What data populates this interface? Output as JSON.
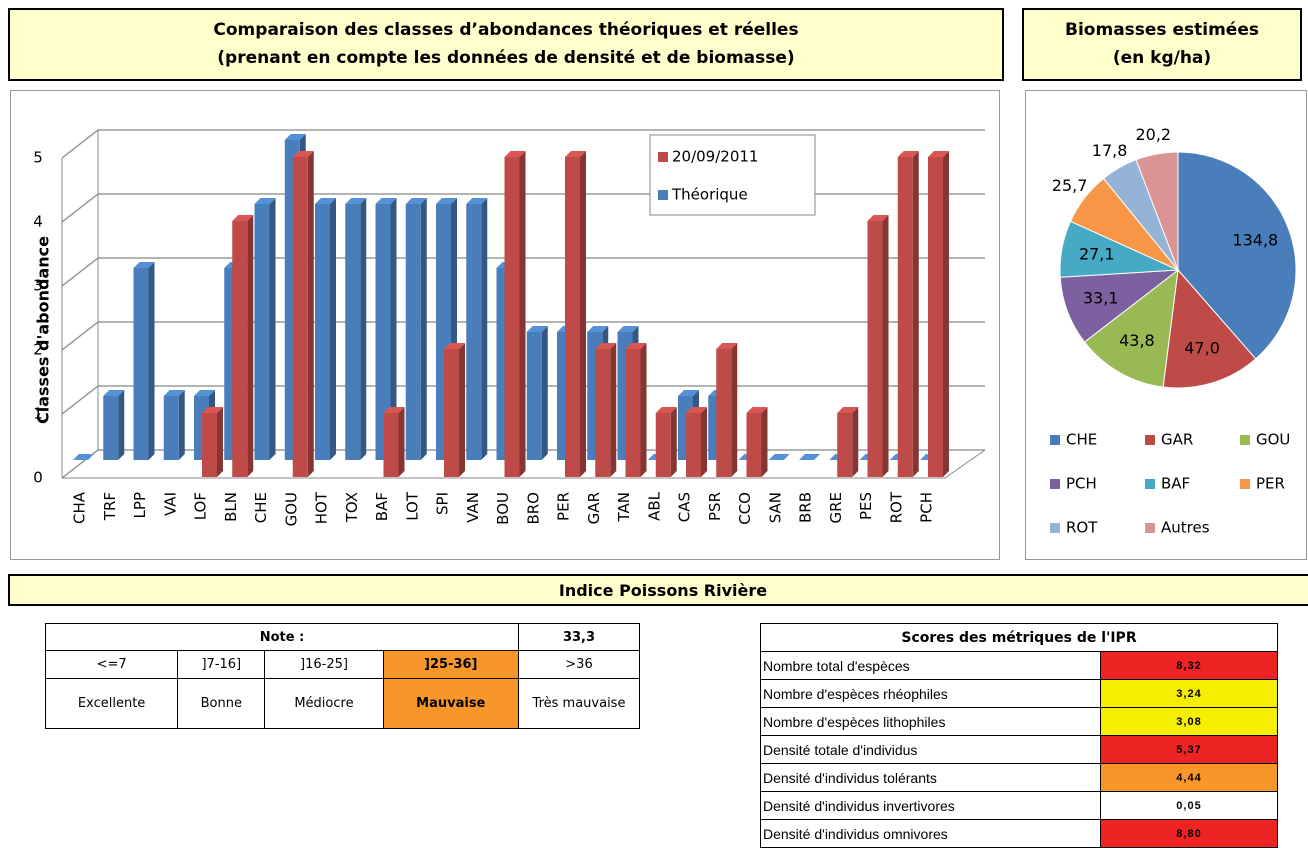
{
  "header": {
    "chart_title": "Comparaison des classes d’abondances théoriques et réelles",
    "chart_subtitle": "(prenant en compte les données de densité et de biomasse)",
    "pie_title": "Biomasses estimées",
    "pie_subtitle": "(en kg/ha)"
  },
  "chart_data": [
    {
      "type": "bar",
      "y_label": "Classes d'abondance",
      "categories": [
        "CHA",
        "TRF",
        "LPP",
        "VAI",
        "LOF",
        "BLN",
        "CHE",
        "GOU",
        "HOT",
        "TOX",
        "BAF",
        "LOT",
        "SPI",
        "VAN",
        "BOU",
        "BRO",
        "PER",
        "GAR",
        "TAN",
        "ABL",
        "CAS",
        "PSR",
        "CCO",
        "SAN",
        "BRB",
        "GRE",
        "PES",
        "ROT",
        "PCH"
      ],
      "series": [
        {
          "name": "20/09/2011",
          "color": "#be4b48",
          "values": [
            0,
            0,
            0,
            0,
            1,
            4,
            0,
            5,
            0,
            0,
            1,
            0,
            2,
            0,
            5,
            0,
            5,
            2,
            2,
            1,
            1,
            2,
            1,
            0,
            0,
            1,
            4,
            5,
            5
          ]
        },
        {
          "name": "Théorique",
          "color": "#4a7ebb",
          "values": [
            0,
            1,
            3,
            1,
            1,
            3,
            4,
            5,
            4,
            4,
            4,
            4,
            4,
            4,
            3,
            2,
            2,
            2,
            2,
            0,
            1,
            1,
            0,
            0,
            0,
            0,
            0,
            0,
            0
          ]
        }
      ],
      "ylim": [
        0,
        5
      ],
      "yticks": [
        0,
        1,
        2,
        3,
        4,
        5
      ],
      "grid": true,
      "legend": "top-right"
    },
    {
      "type": "pie",
      "categories": [
        "CHE",
        "GAR",
        "GOU",
        "PCH",
        "BAF",
        "PER",
        "ROT",
        "Autres"
      ],
      "values": [
        134.8,
        47.0,
        43.8,
        33.1,
        27.1,
        25.7,
        17.8,
        20.2
      ],
      "value_labels": [
        "134,8",
        "47,0",
        "43,8",
        "33,1",
        "27,1",
        "25,7",
        "17,8",
        "20,2"
      ],
      "colors": [
        "#4a7ebb",
        "#be4b48",
        "#98b954",
        "#7d60a0",
        "#46aac5",
        "#f79646",
        "#95b3d7",
        "#d99594"
      ]
    }
  ],
  "ipr": {
    "title": "Indice Poissons Rivière",
    "note_label": "Note :",
    "note_value": "33,3",
    "ranges": [
      "<=7",
      "]7-16]",
      "]16-25]",
      "]25-36]",
      ">36"
    ],
    "classes": [
      "Excellente",
      "Bonne",
      "Médiocre",
      "Mauvaise",
      "Très mauvaise"
    ],
    "highlight": 3,
    "highlight_color": "#f7962a"
  },
  "metrics": {
    "title": "Scores des métriques de l'IPR",
    "rows": [
      {
        "name": "Nombre total d'espèces",
        "value": "8,32",
        "color": "#ee2424"
      },
      {
        "name": "Nombre d'espèces rhéophiles",
        "value": "3,24",
        "color": "#f5ee00"
      },
      {
        "name": "Nombre d'espèces lithophiles",
        "value": "3,08",
        "color": "#f5ee00"
      },
      {
        "name": "Densité totale d'individus",
        "value": "5,37",
        "color": "#ee2424"
      },
      {
        "name": "Densité d'individus tolérants",
        "value": "4,44",
        "color": "#f7962a"
      },
      {
        "name": "Densité d'individus invertivores",
        "value": "0,05",
        "color": "#ffffff"
      },
      {
        "name": "Densité d'individus omnivores",
        "value": "8,80",
        "color": "#ee2424"
      }
    ]
  }
}
